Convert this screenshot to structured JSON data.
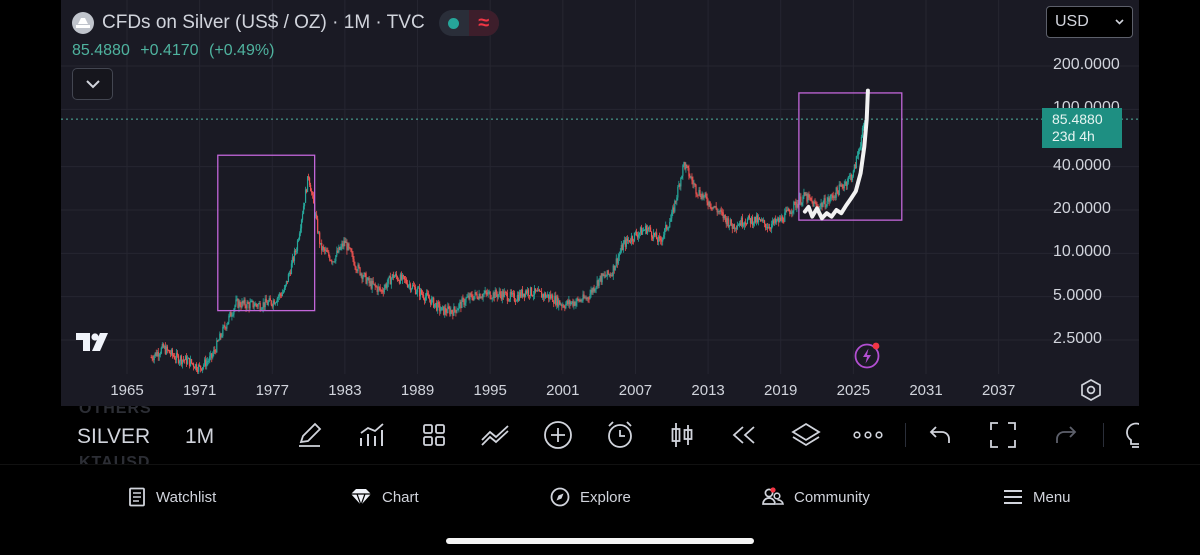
{
  "header": {
    "symbol_title": "CFDs on Silver (US$ / OZ) · 1M · TVC",
    "price": "85.4880",
    "change": "+0.4170",
    "change_pct": "(+0.49%)",
    "currency": "USD",
    "status_green": "#26a69a",
    "status_red": "#f23645"
  },
  "price_tag": {
    "price": "85.4880",
    "countdown": "23d 4h",
    "color": "#1e8f82"
  },
  "y_axis": [
    "200.0000",
    "100.0000",
    "40.0000",
    "20.0000",
    "10.0000",
    "5.0000",
    "2.5000"
  ],
  "x_axis": [
    "1965",
    "1971",
    "1977",
    "1983",
    "1989",
    "1995",
    "2001",
    "2007",
    "2013",
    "2019",
    "2025",
    "2031",
    "2037"
  ],
  "toolbar": {
    "ghost_top": "OTHERS",
    "ghost_bottom": "KTAUSD",
    "symbol": "SILVER",
    "interval": "1M",
    "icons": [
      "draw-pen-icon",
      "indicators-icon",
      "templates-grid-icon",
      "compare-icon",
      "add-plus-icon",
      "alert-clock-icon",
      "candles-icon",
      "replay-rewind-icon",
      "layers-icon",
      "more-dots-icon",
      "undo-icon",
      "fullscreen-icon",
      "redo-icon",
      "bulb-icon"
    ]
  },
  "tabs": {
    "watchlist": "Watchlist",
    "chart": "Chart",
    "explore": "Explore",
    "community": "Community",
    "menu": "Menu"
  },
  "chart_data": {
    "type": "candlestick",
    "symbol": "CFDs on Silver (US$ / OZ)",
    "interval": "1M",
    "y_scale": "log",
    "ylim": [
      2,
      200
    ],
    "xlim": [
      1962,
      2040
    ],
    "last_price": 85.488,
    "x": [
      1967,
      1968,
      1969,
      1970,
      1971,
      1972,
      1973,
      1974,
      1975,
      1976,
      1977,
      1978,
      1979,
      1980,
      1981,
      1982,
      1983,
      1984,
      1985,
      1986,
      1987,
      1988,
      1989,
      1990,
      1991,
      1992,
      1993,
      1994,
      1995,
      1996,
      1997,
      1998,
      1999,
      2000,
      2001,
      2002,
      2003,
      2004,
      2005,
      2006,
      2007,
      2008,
      2009,
      2010,
      2011,
      2012,
      2013,
      2014,
      2015,
      2016,
      2017,
      2018,
      2019,
      2020,
      2021,
      2022,
      2023,
      2024,
      2025,
      2026
    ],
    "y": [
      1.9,
      2.2,
      1.9,
      1.8,
      1.6,
      1.9,
      3.0,
      4.5,
      4.4,
      4.4,
      4.6,
      5.5,
      11,
      35,
      11,
      9,
      12,
      8,
      6.2,
      5.5,
      7.0,
      6.4,
      5.5,
      4.8,
      4.0,
      4.0,
      4.8,
      5.2,
      5.2,
      5.2,
      4.9,
      5.5,
      5.2,
      5.0,
      4.4,
      4.6,
      4.9,
      6.6,
      7.3,
      11.5,
      13.5,
      15,
      12,
      18,
      42,
      28,
      23,
      19,
      15.5,
      17,
      17,
      15.5,
      17,
      21,
      25,
      21,
      23.5,
      29,
      36,
      85.5
    ],
    "annotations": [
      {
        "type": "rectangle",
        "x_range": [
          1972.5,
          1980.5
        ],
        "y_range": [
          4.0,
          48
        ],
        "color": "#c266d9"
      },
      {
        "type": "rectangle",
        "x_range": [
          2020.5,
          2029
        ],
        "y_range": [
          17,
          130
        ],
        "color": "#c266d9"
      },
      {
        "type": "freehand",
        "note": "white hand-drawn path over 2021-2025 price action"
      }
    ]
  }
}
